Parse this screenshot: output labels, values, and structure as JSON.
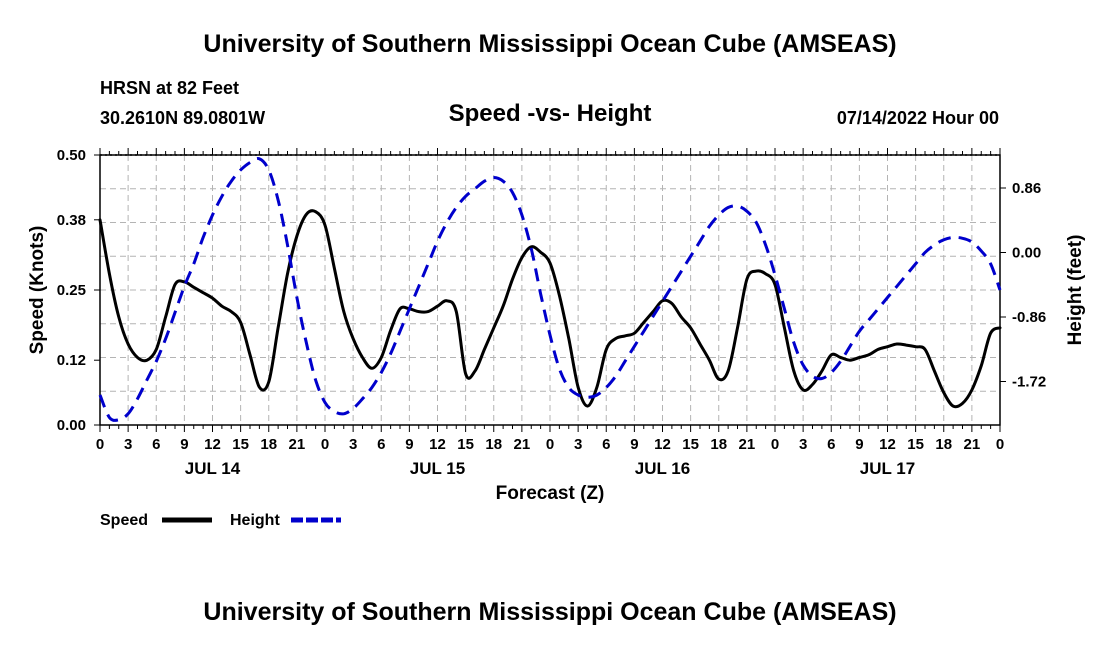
{
  "header": {
    "title": "University of Southern Mississippi Ocean Cube (AMSEAS)",
    "station": "HRSN at 82 Feet",
    "coords": "30.2610N  89.0801W",
    "datetime": "07/14/2022 Hour 00",
    "footer_title": "University of Southern Mississippi Ocean Cube (AMSEAS)"
  },
  "chart_data": {
    "type": "line",
    "title": "Speed -vs- Height",
    "xlabel": "Forecast (Z)",
    "ylabel": "Speed (Knots)",
    "y2label": "Height (feet)",
    "xlim": [
      0,
      96
    ],
    "ylim": [
      0,
      0.5
    ],
    "y2lim": [
      -2.3,
      1.3
    ],
    "yticks": [
      0.0,
      0.12,
      0.25,
      0.38,
      0.5
    ],
    "ytick_labels": [
      "0.00",
      "0.12",
      "0.25",
      "0.38",
      "0.50"
    ],
    "y2ticks": [
      -1.72,
      -0.86,
      0.0,
      0.86
    ],
    "y2tick_labels": [
      "-1.72",
      "-0.86",
      "0.00",
      "0.86"
    ],
    "xtick_labels": [
      "0",
      "3",
      "6",
      "9",
      "12",
      "15",
      "18",
      "21",
      "0",
      "3",
      "6",
      "9",
      "12",
      "15",
      "18",
      "21",
      "0",
      "3",
      "6",
      "9",
      "12",
      "15",
      "18",
      "21",
      "0",
      "3",
      "6",
      "9",
      "12",
      "15",
      "18",
      "21",
      "0"
    ],
    "date_labels": [
      {
        "hour": 12,
        "label": "JUL 14"
      },
      {
        "hour": 36,
        "label": "JUL 15"
      },
      {
        "hour": 60,
        "label": "JUL 16"
      },
      {
        "hour": 84,
        "label": "JUL 17"
      }
    ],
    "legend": {
      "placement": "bottom-left",
      "entries": [
        "Speed",
        "Height"
      ]
    },
    "grid": true,
    "series": [
      {
        "name": "Speed",
        "color": "#000000",
        "style": "solid",
        "axis": "left",
        "x": [
          0,
          1,
          2,
          3,
          4,
          5,
          6,
          7,
          8,
          9,
          10,
          11,
          12,
          13,
          14,
          15,
          16,
          17,
          18,
          19,
          20,
          21,
          22,
          23,
          24,
          25,
          26,
          27,
          28,
          29,
          30,
          31,
          32,
          33,
          34,
          35,
          36,
          37,
          38,
          39,
          40,
          41,
          42,
          43,
          44,
          45,
          46,
          47,
          48,
          49,
          50,
          51,
          52,
          53,
          54,
          55,
          56,
          57,
          58,
          59,
          60,
          61,
          62,
          63,
          64,
          65,
          66,
          67,
          68,
          69,
          70,
          71,
          72,
          73,
          74,
          75,
          76,
          77,
          78,
          79,
          80,
          81,
          82,
          83,
          84,
          85,
          86,
          87,
          88,
          89,
          90,
          91,
          92,
          93,
          94,
          95,
          96
        ],
        "values": [
          0.38,
          0.28,
          0.2,
          0.15,
          0.125,
          0.12,
          0.14,
          0.2,
          0.26,
          0.265,
          0.255,
          0.245,
          0.235,
          0.22,
          0.21,
          0.19,
          0.13,
          0.07,
          0.08,
          0.18,
          0.28,
          0.35,
          0.39,
          0.395,
          0.37,
          0.29,
          0.21,
          0.16,
          0.125,
          0.105,
          0.125,
          0.175,
          0.215,
          0.215,
          0.21,
          0.21,
          0.22,
          0.23,
          0.21,
          0.095,
          0.1,
          0.14,
          0.18,
          0.22,
          0.27,
          0.31,
          0.33,
          0.32,
          0.3,
          0.24,
          0.16,
          0.07,
          0.035,
          0.07,
          0.14,
          0.16,
          0.165,
          0.17,
          0.19,
          0.21,
          0.23,
          0.225,
          0.2,
          0.18,
          0.15,
          0.12,
          0.085,
          0.1,
          0.18,
          0.27,
          0.285,
          0.28,
          0.26,
          0.18,
          0.1,
          0.065,
          0.075,
          0.1,
          0.13,
          0.125,
          0.12,
          0.125,
          0.13,
          0.14,
          0.145,
          0.15,
          0.148,
          0.145,
          0.14,
          0.1,
          0.06,
          0.035,
          0.04,
          0.065,
          0.11,
          0.17,
          0.18
        ]
      },
      {
        "name": "Height",
        "color": "#0000cc",
        "style": "dashed",
        "axis": "right",
        "x": [
          0,
          1,
          2,
          3,
          4,
          5,
          6,
          7,
          8,
          9,
          10,
          11,
          12,
          13,
          14,
          15,
          16,
          17,
          18,
          19,
          20,
          21,
          22,
          23,
          24,
          25,
          26,
          27,
          28,
          29,
          30,
          31,
          32,
          33,
          34,
          35,
          36,
          37,
          38,
          39,
          40,
          41,
          42,
          43,
          44,
          45,
          46,
          47,
          48,
          49,
          50,
          51,
          52,
          53,
          54,
          55,
          56,
          57,
          58,
          59,
          60,
          61,
          62,
          63,
          64,
          65,
          66,
          67,
          68,
          69,
          70,
          71,
          72,
          73,
          74,
          75,
          76,
          77,
          78,
          79,
          80,
          81,
          82,
          83,
          84,
          85,
          86,
          87,
          88,
          89,
          90,
          91,
          92,
          93,
          94,
          95,
          96
        ],
        "values": [
          -1.9,
          -2.2,
          -2.23,
          -2.15,
          -1.95,
          -1.7,
          -1.45,
          -1.15,
          -0.8,
          -0.45,
          -0.15,
          0.2,
          0.5,
          0.75,
          0.95,
          1.1,
          1.2,
          1.25,
          1.1,
          0.7,
          0.1,
          -0.6,
          -1.2,
          -1.7,
          -2.0,
          -2.12,
          -2.15,
          -2.08,
          -1.95,
          -1.8,
          -1.6,
          -1.35,
          -1.05,
          -0.75,
          -0.45,
          -0.15,
          0.15,
          0.4,
          0.6,
          0.75,
          0.85,
          0.95,
          1.0,
          0.95,
          0.8,
          0.5,
          0.05,
          -0.55,
          -1.1,
          -1.55,
          -1.8,
          -1.9,
          -1.93,
          -1.9,
          -1.8,
          -1.65,
          -1.45,
          -1.25,
          -1.05,
          -0.85,
          -0.65,
          -0.45,
          -0.25,
          -0.05,
          0.15,
          0.35,
          0.5,
          0.6,
          0.62,
          0.55,
          0.4,
          0.1,
          -0.3,
          -0.75,
          -1.2,
          -1.5,
          -1.65,
          -1.68,
          -1.6,
          -1.45,
          -1.25,
          -1.05,
          -0.9,
          -0.75,
          -0.6,
          -0.45,
          -0.3,
          -0.15,
          0.0,
          0.1,
          0.17,
          0.2,
          0.19,
          0.14,
          0.02,
          -0.15,
          -0.5
        ]
      }
    ]
  }
}
